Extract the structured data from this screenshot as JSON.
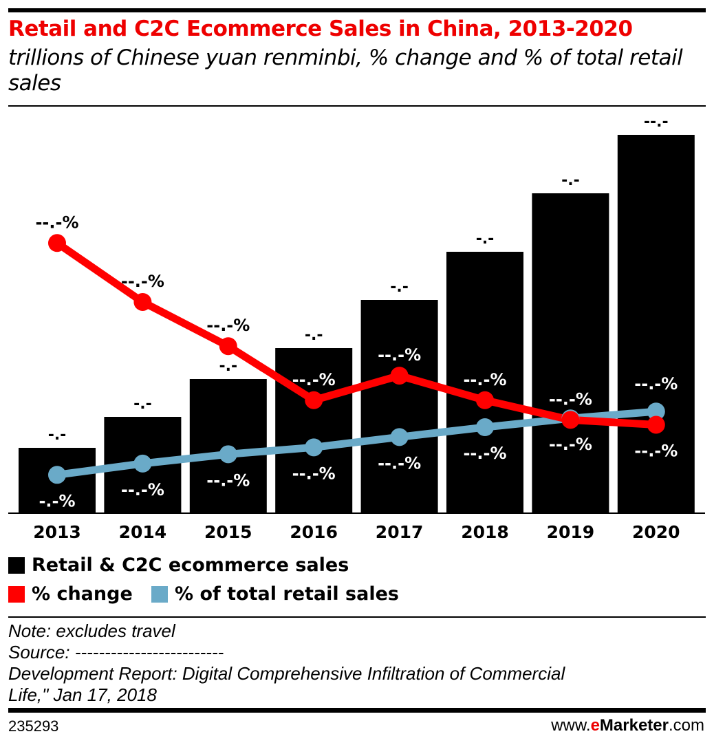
{
  "chart_data": {
    "type": "bar+line",
    "title": "Retail and C2C Ecommerce Sales in China, 2013-2020",
    "subtitle": "trillions of Chinese yuan renminbi, % change and % of total retail sales",
    "categories": [
      "2013",
      "2014",
      "2015",
      "2016",
      "2017",
      "2018",
      "2019",
      "2020"
    ],
    "series": [
      {
        "name": "Retail & C2C ecommerce sales",
        "type": "bar",
        "color": "#000000",
        "values": [
          1.9,
          2.8,
          3.9,
          4.8,
          6.2,
          7.6,
          9.3,
          11.0
        ],
        "labels": [
          "-.-",
          "-.-",
          "-.-",
          "-.-",
          "-.-",
          "-.-",
          "-.-",
          "--.-"
        ]
      },
      {
        "name": "% change",
        "type": "line",
        "color": "#ff0000",
        "values": [
          55,
          43,
          34,
          23,
          28,
          23,
          19,
          18
        ],
        "labels": [
          "--.-%",
          "--.-%",
          "--.-%",
          "--.-%",
          "--.-%",
          "--.-%",
          "--.-%",
          "--.-%"
        ]
      },
      {
        "name": "% of total retail sales",
        "type": "line",
        "color": "#6aaac8",
        "values": [
          7.8,
          10.1,
          12.0,
          13.4,
          15.5,
          17.5,
          19.3,
          20.7
        ],
        "labels": [
          "-.-%",
          "--.-%",
          "--.-%",
          "--.-%",
          "--.-%",
          "--.-%",
          "--.-%",
          "--.-%"
        ]
      }
    ],
    "grid": false,
    "legend": "bottom-left"
  },
  "notes": {
    "note": "Note: excludes travel",
    "source": "Source: -------------------------",
    "source2": "Development Report: Digital Comprehensive Infiltration of Commercial",
    "source3": "Life,\" Jan 17, 2018"
  },
  "footer": {
    "id": "235293",
    "brand_prefix": "www.",
    "brand_e": "e",
    "brand_name": "Marketer",
    ".com": ".com",
    "brand_suffix": ".com"
  }
}
